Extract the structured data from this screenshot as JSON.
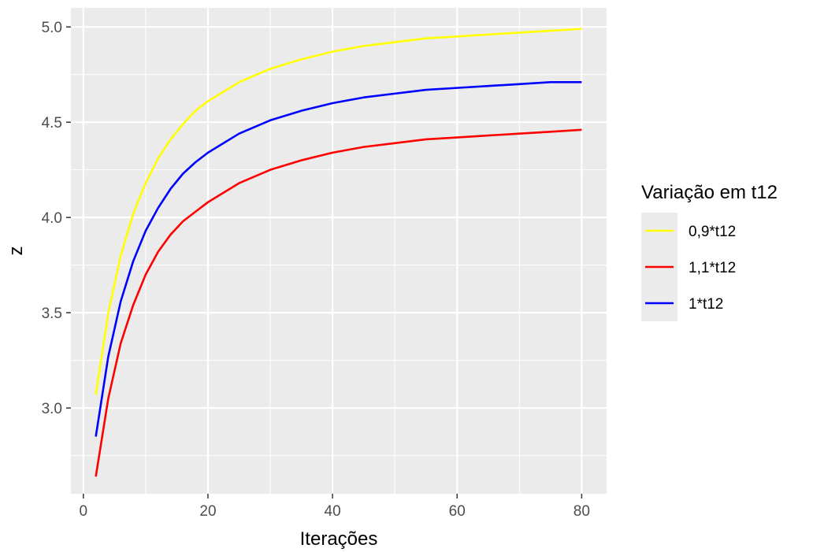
{
  "chart_data": {
    "type": "line",
    "title": "",
    "xlabel": "Iterações",
    "ylabel": "z",
    "xlim": [
      -2,
      84
    ],
    "ylim": [
      2.55,
      5.1
    ],
    "x_ticks": [
      0,
      20,
      40,
      60,
      80
    ],
    "x_tick_labels": [
      "0",
      "20",
      "40",
      "60",
      "80"
    ],
    "x_minor_ticks": [
      10,
      30,
      50,
      70
    ],
    "y_ticks": [
      3.0,
      3.5,
      4.0,
      4.5,
      5.0
    ],
    "y_tick_labels": [
      "3.0",
      "3.5",
      "4.0",
      "4.5",
      "5.0"
    ],
    "y_minor_ticks": [
      2.75,
      3.25,
      3.75,
      4.25,
      4.75
    ],
    "grid": true,
    "panel_background": "#ebebeb",
    "legend": {
      "title": "Variação em t12",
      "placement": "right"
    },
    "series": [
      {
        "name": "0,9*t12",
        "color": "#ffff00",
        "x": [
          2,
          4,
          6,
          8,
          10,
          12,
          14,
          16,
          18,
          20,
          25,
          30,
          35,
          40,
          45,
          50,
          55,
          60,
          65,
          70,
          75,
          80
        ],
        "y": [
          3.07,
          3.5,
          3.8,
          4.02,
          4.18,
          4.31,
          4.41,
          4.49,
          4.56,
          4.61,
          4.71,
          4.78,
          4.83,
          4.87,
          4.9,
          4.92,
          4.94,
          4.95,
          4.96,
          4.97,
          4.98,
          4.99
        ]
      },
      {
        "name": "1,1*t12",
        "color": "#ff0000",
        "x": [
          2,
          4,
          6,
          8,
          10,
          12,
          14,
          16,
          18,
          20,
          25,
          30,
          35,
          40,
          45,
          50,
          55,
          60,
          65,
          70,
          75,
          80
        ],
        "y": [
          2.64,
          3.05,
          3.34,
          3.54,
          3.7,
          3.82,
          3.91,
          3.98,
          4.03,
          4.08,
          4.18,
          4.25,
          4.3,
          4.34,
          4.37,
          4.39,
          4.41,
          4.42,
          4.43,
          4.44,
          4.45,
          4.46
        ]
      },
      {
        "name": "1*t12",
        "color": "#0000ff",
        "x": [
          2,
          4,
          6,
          8,
          10,
          12,
          14,
          16,
          18,
          20,
          25,
          30,
          35,
          40,
          45,
          50,
          55,
          60,
          65,
          70,
          75,
          80
        ],
        "y": [
          2.85,
          3.27,
          3.56,
          3.77,
          3.93,
          4.05,
          4.15,
          4.23,
          4.29,
          4.34,
          4.44,
          4.51,
          4.56,
          4.6,
          4.63,
          4.65,
          4.67,
          4.68,
          4.69,
          4.7,
          4.71,
          4.71
        ]
      }
    ]
  }
}
